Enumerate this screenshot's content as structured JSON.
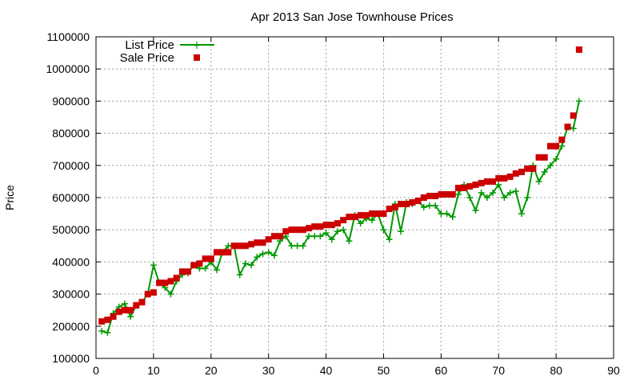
{
  "chart_data": {
    "type": "line",
    "title": "Apr 2013 San Jose Townhouse Prices",
    "ylabel": "Price",
    "xlabel": "",
    "xlim": [
      0,
      90
    ],
    "ylim": [
      100000,
      1100000
    ],
    "xticks": [
      0,
      10,
      20,
      30,
      40,
      50,
      60,
      70,
      80,
      90
    ],
    "yticks": [
      100000,
      200000,
      300000,
      400000,
      500000,
      600000,
      700000,
      800000,
      900000,
      1000000,
      1100000
    ],
    "grid": true,
    "legend_position": "top-left",
    "series": [
      {
        "name": "List Price",
        "style": "line-plus",
        "color": "#009900",
        "x": [
          1,
          2,
          3,
          4,
          5,
          6,
          7,
          8,
          9,
          10,
          11,
          12,
          13,
          14,
          15,
          16,
          17,
          18,
          19,
          20,
          21,
          22,
          23,
          24,
          25,
          26,
          27,
          28,
          29,
          30,
          31,
          32,
          33,
          34,
          35,
          36,
          37,
          38,
          39,
          40,
          41,
          42,
          43,
          44,
          45,
          46,
          47,
          48,
          49,
          50,
          51,
          52,
          53,
          54,
          55,
          56,
          57,
          58,
          59,
          60,
          61,
          62,
          63,
          64,
          65,
          66,
          67,
          68,
          69,
          70,
          71,
          72,
          73,
          74,
          75,
          76,
          77,
          78,
          79,
          80,
          81,
          82,
          83,
          84
        ],
        "values": [
          185000,
          180000,
          240000,
          260000,
          270000,
          230000,
          265000,
          275000,
          300000,
          390000,
          335000,
          320000,
          300000,
          340000,
          360000,
          365000,
          390000,
          380000,
          380000,
          400000,
          375000,
          430000,
          450000,
          450000,
          360000,
          395000,
          390000,
          415000,
          425000,
          430000,
          420000,
          465000,
          480000,
          450000,
          450000,
          450000,
          480000,
          480000,
          480000,
          490000,
          470000,
          495000,
          500000,
          465000,
          545000,
          520000,
          535000,
          530000,
          550000,
          500000,
          470000,
          580000,
          495000,
          585000,
          580000,
          590000,
          570000,
          575000,
          575000,
          550000,
          550000,
          540000,
          610000,
          640000,
          600000,
          560000,
          615000,
          600000,
          615000,
          640000,
          600000,
          615000,
          620000,
          550000,
          600000,
          700000,
          650000,
          680000,
          700000,
          720000,
          760000,
          820000,
          815000,
          900000
        ]
      },
      {
        "name": "Sale Price",
        "style": "points-square",
        "color": "#cc0000",
        "x": [
          1,
          2,
          3,
          4,
          5,
          6,
          7,
          8,
          9,
          10,
          11,
          12,
          13,
          14,
          15,
          16,
          17,
          18,
          19,
          20,
          21,
          22,
          23,
          24,
          25,
          26,
          27,
          28,
          29,
          30,
          31,
          32,
          33,
          34,
          35,
          36,
          37,
          38,
          39,
          40,
          41,
          42,
          43,
          44,
          45,
          46,
          47,
          48,
          49,
          50,
          51,
          52,
          53,
          54,
          55,
          56,
          57,
          58,
          59,
          60,
          61,
          62,
          63,
          64,
          65,
          66,
          67,
          68,
          69,
          70,
          71,
          72,
          73,
          74,
          75,
          76,
          77,
          78,
          79,
          80,
          81,
          82,
          83,
          84
        ],
        "values": [
          215000,
          220000,
          230000,
          245000,
          250000,
          250000,
          265000,
          275000,
          300000,
          305000,
          335000,
          335000,
          340000,
          350000,
          370000,
          370000,
          390000,
          395000,
          410000,
          410000,
          430000,
          430000,
          430000,
          450000,
          450000,
          450000,
          455000,
          460000,
          460000,
          470000,
          480000,
          480000,
          495000,
          500000,
          500000,
          500000,
          505000,
          510000,
          510000,
          515000,
          515000,
          520000,
          530000,
          540000,
          540000,
          545000,
          545000,
          550000,
          550000,
          550000,
          565000,
          570000,
          580000,
          580000,
          585000,
          590000,
          600000,
          605000,
          605000,
          610000,
          610000,
          610000,
          630000,
          630000,
          635000,
          640000,
          645000,
          650000,
          650000,
          660000,
          660000,
          665000,
          675000,
          680000,
          690000,
          690000,
          725000,
          725000,
          760000,
          760000,
          780000,
          820000,
          855000,
          1060000
        ]
      }
    ]
  }
}
